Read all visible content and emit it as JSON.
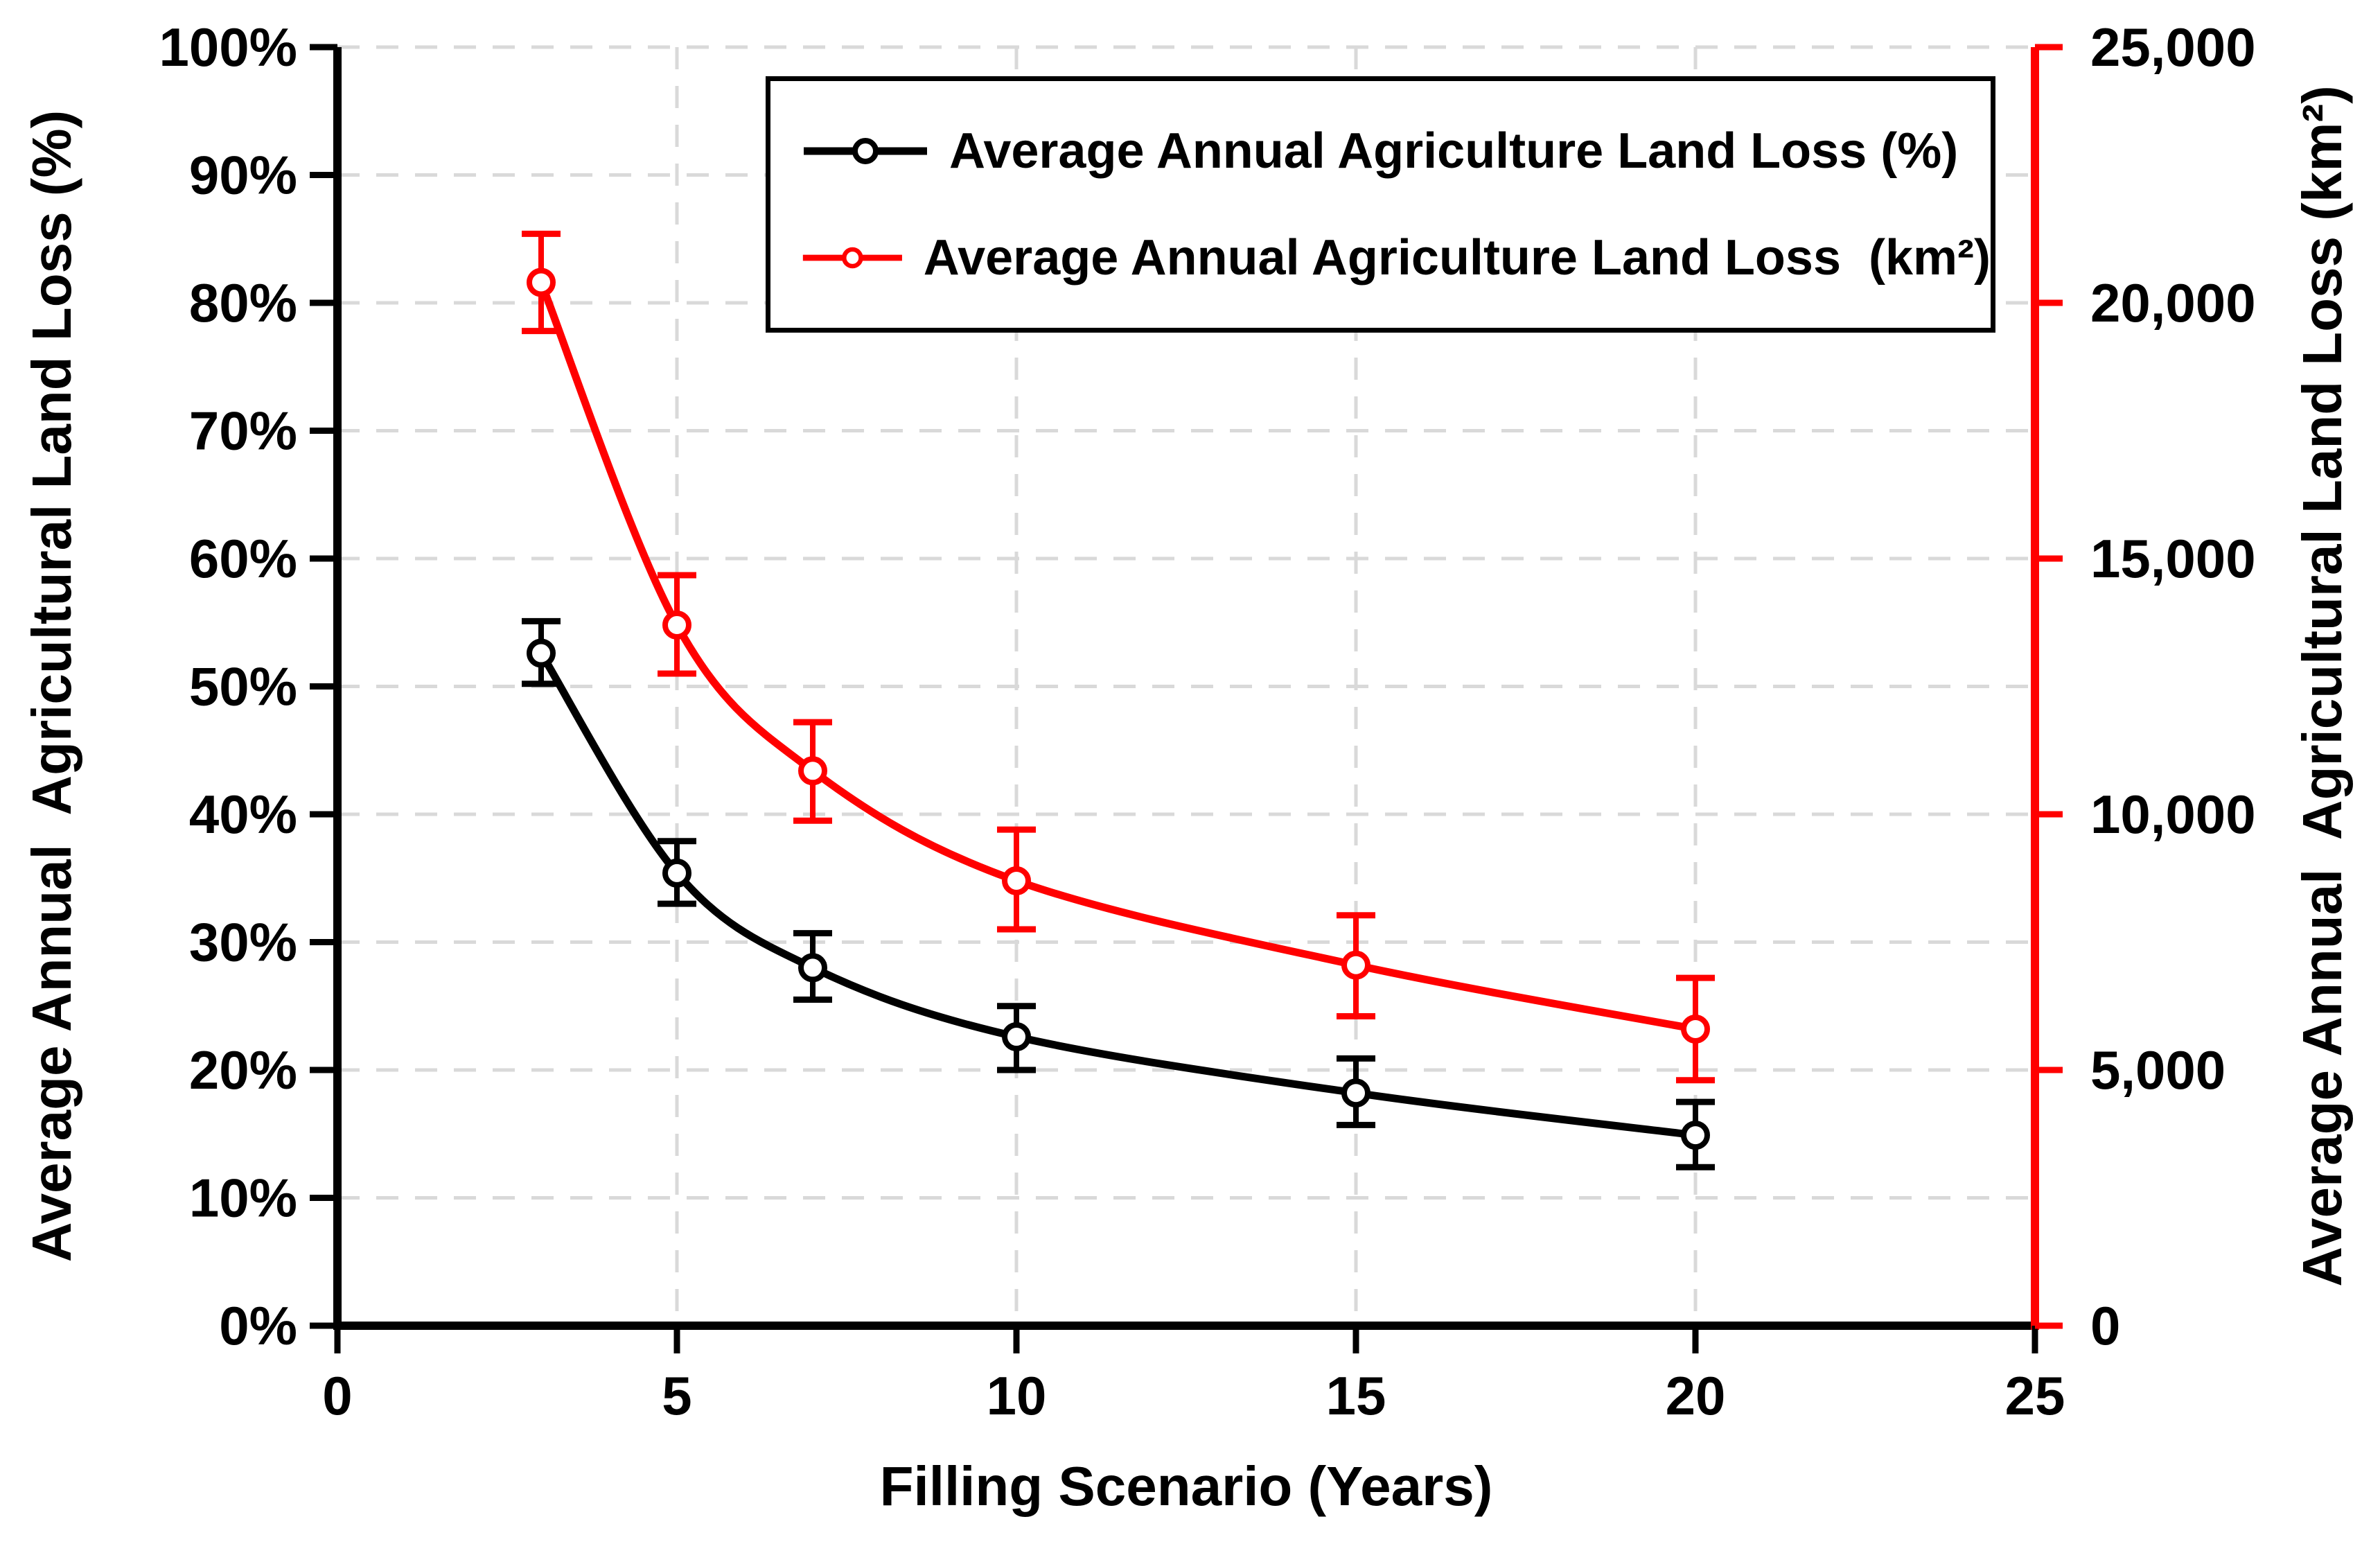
{
  "chart_data": {
    "type": "line",
    "xlabel": "Filling Scenario (Years)",
    "ylabel_left": "Average Annual  Agricultural Land Loss (%)",
    "ylabel_right": "Average Annual  Agricultural Land Loss (km²)",
    "grid": {
      "color": "#D9D9D9",
      "dashed": true
    },
    "x_axis": {
      "lim": [
        0,
        25
      ],
      "values": [
        0,
        5,
        10,
        15,
        20,
        25
      ],
      "labels": [
        "0",
        "5",
        "10",
        "15",
        "20",
        "25"
      ]
    },
    "left_axis": {
      "lim": [
        0,
        100
      ],
      "values": [
        0,
        10,
        20,
        30,
        40,
        50,
        60,
        70,
        80,
        90,
        100
      ],
      "labels": [
        "0%",
        "10%",
        "20%",
        "30%",
        "40%",
        "50%",
        "60%",
        "70%",
        "80%",
        "90%",
        "100%"
      ]
    },
    "right_axis": {
      "lim": [
        0,
        25000
      ],
      "values": [
        0,
        5000,
        10000,
        15000,
        20000,
        25000
      ],
      "labels": [
        "0",
        "5,000",
        "10,000",
        "15,000",
        "20,000",
        "25,000"
      ],
      "color": "#FF0000"
    },
    "legend": [
      {
        "label": "Average Annual Agriculture Land Loss (%)",
        "color": "#000000"
      },
      {
        "label": "Average Annual Agriculture Land Loss  (km²)",
        "color": "#FF0000"
      }
    ],
    "series": [
      {
        "name": "Average Annual Agriculture Land Loss (%)",
        "axis": "left",
        "color": "#000000",
        "x": [
          3,
          5,
          7,
          10,
          15,
          20
        ],
        "y": [
          52.6,
          35.4,
          28.0,
          22.6,
          18.2,
          14.9
        ],
        "err_up": [
          2.5,
          2.5,
          2.7,
          2.4,
          2.7,
          2.6
        ],
        "err_down": [
          2.4,
          2.4,
          2.5,
          2.6,
          2.5,
          2.5
        ]
      },
      {
        "name": "Average Annual Agriculture Land Loss (km²)",
        "axis": "right",
        "color": "#FF0000",
        "x": [
          3,
          5,
          7,
          10,
          15,
          20
        ],
        "y": [
          20400,
          13700,
          10850,
          8700,
          7050,
          5800
        ],
        "err_up": [
          950,
          975,
          950,
          1000,
          975,
          1000
        ],
        "err_down": [
          950,
          950,
          975,
          950,
          1000,
          1000
        ]
      }
    ]
  }
}
